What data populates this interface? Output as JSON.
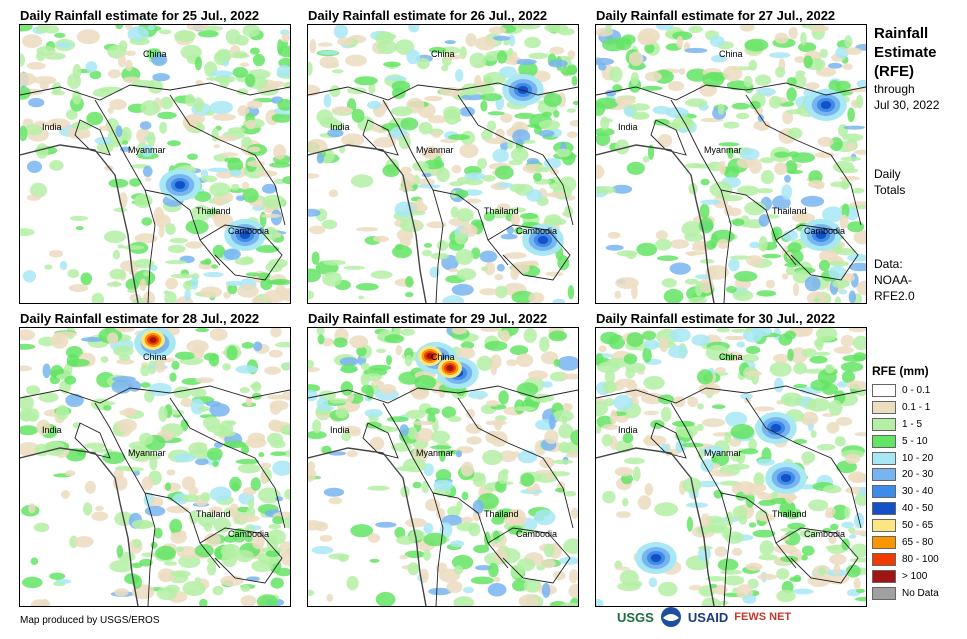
{
  "panels": [
    {
      "title": "Daily Rainfall estimate for 25 Jul., 2022",
      "labels": {
        "china": "China",
        "india": "India",
        "myanmar": "Myanmar",
        "thailand": "Thailand",
        "cambodia": "Cambodia"
      }
    },
    {
      "title": "Daily Rainfall estimate for 26 Jul., 2022",
      "labels": {
        "china": "China",
        "india": "India",
        "myanmar": "Myanmar",
        "thailand": "Thailand",
        "cambodia": "Cambodia"
      }
    },
    {
      "title": "Daily Rainfall estimate for 27 Jul., 2022",
      "labels": {
        "china": "China",
        "india": "India",
        "myanmar": "Myanmar",
        "thailand": "Thailand",
        "cambodia": "Cambodia"
      }
    },
    {
      "title": "Daily Rainfall estimate for 28 Jul., 2022",
      "labels": {
        "china": "China",
        "india": "India",
        "myanmar": "Myanmar",
        "thailand": "Thailand",
        "cambodia": "Cambodia"
      }
    },
    {
      "title": "Daily Rainfall estimate for 29 Jul., 2022",
      "labels": {
        "china": "China",
        "india": "India",
        "myanmar": "Myanmar",
        "thailand": "Thailand",
        "cambodia": "Cambodia"
      }
    },
    {
      "title": "Daily Rainfall estimate for 30 Jul., 2022",
      "labels": {
        "china": "China",
        "india": "India",
        "myanmar": "Myanmar",
        "thailand": "Thailand",
        "cambodia": "Cambodia"
      }
    }
  ],
  "side": {
    "title1": "Rainfall",
    "title2": "Estimate",
    "title3": "(RFE)",
    "through": "through",
    "date": "Jul 30, 2022",
    "daily": "Daily",
    "totals": "Totals",
    "data_label": "Data:",
    "source1": "NOAA-",
    "source2": "RFE2.0"
  },
  "legend": {
    "title": "RFE (mm)",
    "items": [
      {
        "label": "0 - 0.1",
        "color": "#ffffff"
      },
      {
        "label": "0.1 - 1",
        "color": "#ecdcc0"
      },
      {
        "label": "1 - 5",
        "color": "#b4f0a4"
      },
      {
        "label": "5 - 10",
        "color": "#64e464"
      },
      {
        "label": "10 - 20",
        "color": "#a8e8f4"
      },
      {
        "label": "20 - 30",
        "color": "#78b4f0"
      },
      {
        "label": "30 - 40",
        "color": "#3c8ce8"
      },
      {
        "label": "40 - 50",
        "color": "#1450c8"
      },
      {
        "label": "50 - 65",
        "color": "#fae682"
      },
      {
        "label": "65 - 80",
        "color": "#fa9600"
      },
      {
        "label": "80 - 100",
        "color": "#f03c00"
      },
      {
        "label": "> 100",
        "color": "#a01414"
      },
      {
        "label": "No Data",
        "color": "#a0a0a0"
      }
    ]
  },
  "footer": {
    "credit": "Map produced by USGS/EROS",
    "logos": [
      "USGS",
      "NOAA",
      "USAID",
      "FEWS NET"
    ]
  }
}
